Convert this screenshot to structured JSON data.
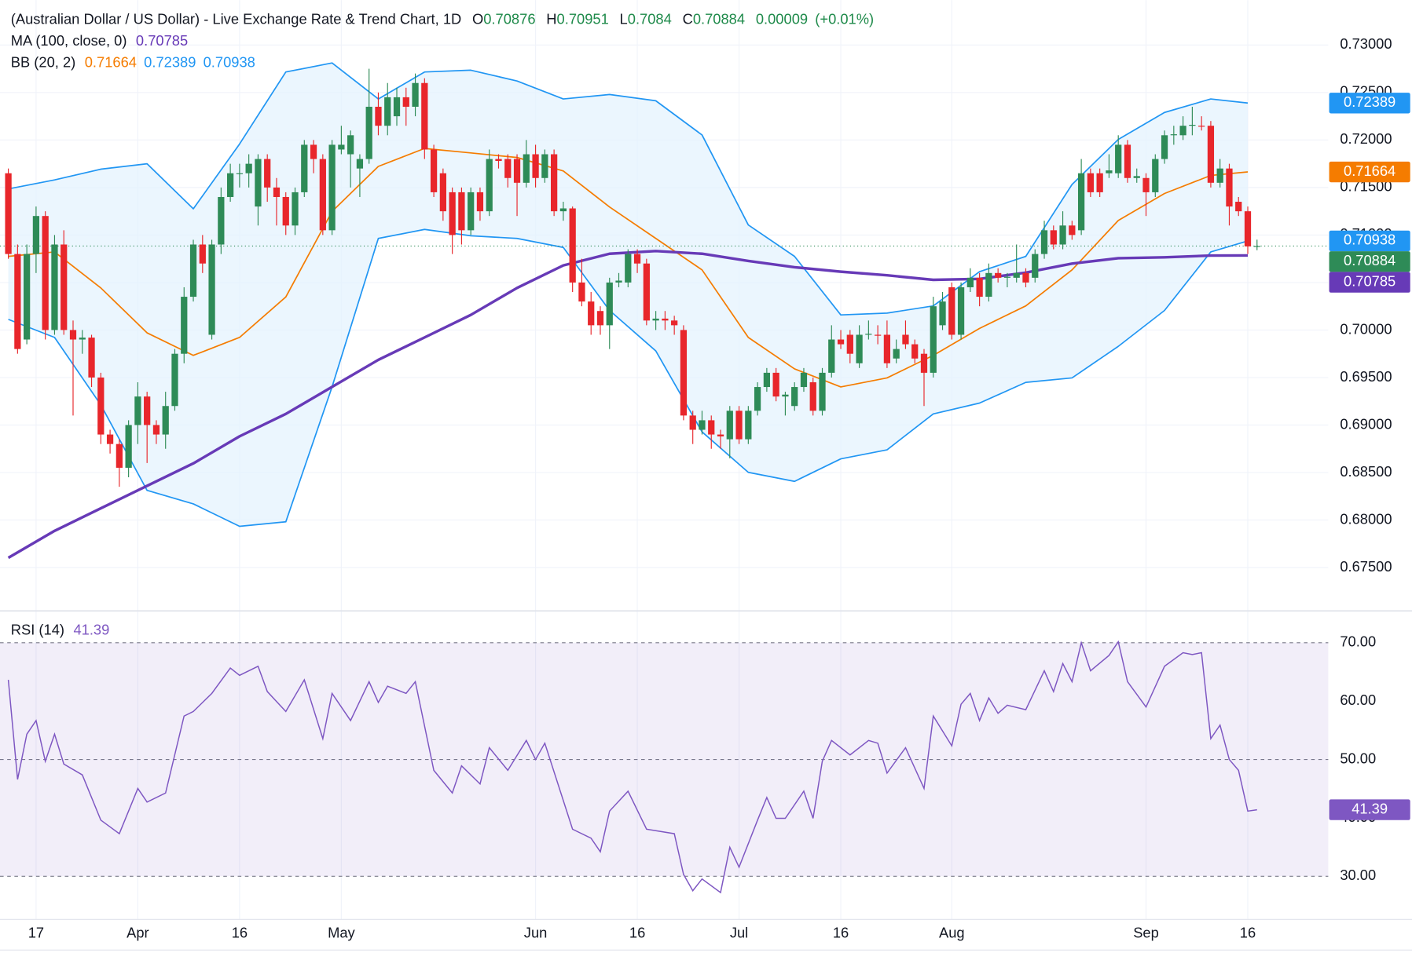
{
  "chart_data": {
    "type": "candlestick",
    "header": {
      "title": "(Australian Dollar / US Dollar) - Live Exchange Rate & Trend Chart, 1D",
      "open_label": "O",
      "open": 0.70876,
      "high_label": "H",
      "high": 0.70951,
      "low_label": "L",
      "low": 0.7084,
      "close_label": "C",
      "close": 0.70884,
      "change": 9e-05,
      "change_pct": "(+0.01%)"
    },
    "up_color": "#2e8b57",
    "down_color": "#e8262b",
    "xlim": [
      -0.9,
      142.7
    ],
    "xticks": [
      {
        "value": 3,
        "label": "17"
      },
      {
        "value": 14,
        "label": "Apr"
      },
      {
        "value": 25,
        "label": "16"
      },
      {
        "value": 36,
        "label": "May"
      },
      {
        "value": 57,
        "label": "Jun"
      },
      {
        "value": 68,
        "label": "16"
      },
      {
        "value": 79,
        "label": "Jul"
      },
      {
        "value": 90,
        "label": "16"
      },
      {
        "value": 102,
        "label": "Aug"
      },
      {
        "value": 123,
        "label": "Sep"
      },
      {
        "value": 134,
        "label": "16"
      }
    ],
    "ylim": [
      0.67053,
      0.73473
    ],
    "yticks": [
      {
        "value": 0.675,
        "label": "0.67500"
      },
      {
        "value": 0.68,
        "label": "0.68000"
      },
      {
        "value": 0.685,
        "label": "0.68500"
      },
      {
        "value": 0.69,
        "label": "0.69000"
      },
      {
        "value": 0.695,
        "label": "0.69500"
      },
      {
        "value": 0.7,
        "label": "0.70000"
      },
      {
        "value": 0.705,
        "label": "0.70500"
      },
      {
        "value": 0.71,
        "label": "0.71000"
      },
      {
        "value": 0.715,
        "label": "0.71500"
      },
      {
        "value": 0.72,
        "label": "0.72000"
      },
      {
        "value": 0.725,
        "label": "0.72500"
      },
      {
        "value": 0.73,
        "label": "0.73000"
      }
    ],
    "grid": true,
    "candles": [
      [
        0.7165,
        0.717,
        0.7075,
        0.708
      ],
      [
        0.708,
        0.709,
        0.6975,
        0.698
      ],
      [
        0.699,
        0.709,
        0.6985,
        0.708
      ],
      [
        0.708,
        0.713,
        0.706,
        0.712
      ],
      [
        0.712,
        0.7125,
        0.699,
        0.7
      ],
      [
        0.7,
        0.71,
        0.6995,
        0.709
      ],
      [
        0.709,
        0.7105,
        0.6995,
        0.7
      ],
      [
        0.7,
        0.701,
        0.691,
        0.699
      ],
      [
        0.699,
        0.7,
        0.6975,
        0.6992
      ],
      [
        0.6992,
        0.6995,
        0.694,
        0.695
      ],
      [
        0.695,
        0.6955,
        0.688,
        0.689
      ],
      [
        0.689,
        0.6895,
        0.687,
        0.688
      ],
      [
        0.688,
        0.6885,
        0.6835,
        0.6855
      ],
      [
        0.6855,
        0.6905,
        0.6845,
        0.69
      ],
      [
        0.69,
        0.6945,
        0.688,
        0.693
      ],
      [
        0.693,
        0.6935,
        0.686,
        0.69
      ],
      [
        0.69,
        0.6905,
        0.688,
        0.689
      ],
      [
        0.689,
        0.6935,
        0.6875,
        0.692
      ],
      [
        0.692,
        0.698,
        0.6915,
        0.6975
      ],
      [
        0.6975,
        0.7045,
        0.6965,
        0.7035
      ],
      [
        0.7035,
        0.7095,
        0.703,
        0.709
      ],
      [
        0.709,
        0.71,
        0.706,
        0.707
      ],
      [
        0.6995,
        0.7095,
        0.699,
        0.709
      ],
      [
        0.709,
        0.715,
        0.708,
        0.714
      ],
      [
        0.714,
        0.7175,
        0.7135,
        0.7165
      ],
      [
        0.7165,
        0.7175,
        0.715,
        0.7165
      ],
      [
        0.7165,
        0.7185,
        0.715,
        0.7175
      ],
      [
        0.713,
        0.7185,
        0.711,
        0.718
      ],
      [
        0.718,
        0.7185,
        0.7135,
        0.715
      ],
      [
        0.715,
        0.716,
        0.711,
        0.714
      ],
      [
        0.714,
        0.7145,
        0.71,
        0.711
      ],
      [
        0.711,
        0.715,
        0.71,
        0.7145
      ],
      [
        0.7145,
        0.72,
        0.714,
        0.7195
      ],
      [
        0.7195,
        0.72,
        0.7165,
        0.718
      ],
      [
        0.718,
        0.7185,
        0.71,
        0.7105
      ],
      [
        0.7105,
        0.72,
        0.71,
        0.7195
      ],
      [
        0.719,
        0.7215,
        0.7185,
        0.7195
      ],
      [
        0.7185,
        0.721,
        0.715,
        0.7205
      ],
      [
        0.717,
        0.7185,
        0.714,
        0.718
      ],
      [
        0.718,
        0.7275,
        0.7175,
        0.7235
      ],
      [
        0.7235,
        0.725,
        0.7205,
        0.7215
      ],
      [
        0.7215,
        0.726,
        0.7205,
        0.7245
      ],
      [
        0.7225,
        0.7255,
        0.7215,
        0.7245
      ],
      [
        0.7245,
        0.7255,
        0.7215,
        0.7235
      ],
      [
        0.7235,
        0.727,
        0.7225,
        0.726
      ],
      [
        0.726,
        0.7265,
        0.718,
        0.719
      ],
      [
        0.719,
        0.7195,
        0.714,
        0.7145
      ],
      [
        0.7165,
        0.717,
        0.7115,
        0.7125
      ],
      [
        0.7145,
        0.715,
        0.708,
        0.71
      ],
      [
        0.7145,
        0.715,
        0.709,
        0.7105
      ],
      [
        0.7105,
        0.715,
        0.71,
        0.7145
      ],
      [
        0.7145,
        0.715,
        0.7115,
        0.7125
      ],
      [
        0.7125,
        0.719,
        0.712,
        0.718
      ],
      [
        0.718,
        0.7185,
        0.717,
        0.7178
      ],
      [
        0.718,
        0.7185,
        0.715,
        0.716
      ],
      [
        0.718,
        0.7185,
        0.712,
        0.7155
      ],
      [
        0.7155,
        0.72,
        0.715,
        0.7185
      ],
      [
        0.7185,
        0.7195,
        0.715,
        0.716
      ],
      [
        0.716,
        0.719,
        0.7155,
        0.7185
      ],
      [
        0.7185,
        0.719,
        0.712,
        0.7125
      ],
      [
        0.7125,
        0.7135,
        0.7115,
        0.7128
      ],
      [
        0.7128,
        0.713,
        0.704,
        0.705
      ],
      [
        0.705,
        0.7075,
        0.7025,
        0.703
      ],
      [
        0.703,
        0.704,
        0.6995,
        0.7005
      ],
      [
        0.702,
        0.7025,
        0.6995,
        0.7005
      ],
      [
        0.7005,
        0.7055,
        0.698,
        0.705
      ],
      [
        0.705,
        0.706,
        0.7045,
        0.7052
      ],
      [
        0.705,
        0.7085,
        0.7045,
        0.708
      ],
      [
        0.708,
        0.7085,
        0.706,
        0.707
      ],
      [
        0.707,
        0.7075,
        0.7005,
        0.701
      ],
      [
        0.701,
        0.702,
        0.7,
        0.7012
      ],
      [
        0.7012,
        0.702,
        0.7,
        0.701
      ],
      [
        0.701,
        0.7015,
        0.6995,
        0.7005
      ],
      [
        0.7,
        0.7005,
        0.6905,
        0.691
      ],
      [
        0.691,
        0.6915,
        0.688,
        0.6895
      ],
      [
        0.6895,
        0.6915,
        0.689,
        0.6905
      ],
      [
        0.6905,
        0.691,
        0.6875,
        0.689
      ],
      [
        0.689,
        0.6895,
        0.6875,
        0.6888
      ],
      [
        0.6885,
        0.692,
        0.6865,
        0.6915
      ],
      [
        0.6915,
        0.692,
        0.688,
        0.6885
      ],
      [
        0.6885,
        0.692,
        0.688,
        0.6915
      ],
      [
        0.6915,
        0.6945,
        0.691,
        0.694
      ],
      [
        0.694,
        0.696,
        0.6935,
        0.6955
      ],
      [
        0.6955,
        0.696,
        0.6925,
        0.693
      ],
      [
        0.693,
        0.6935,
        0.691,
        0.6932
      ],
      [
        0.692,
        0.6945,
        0.6915,
        0.694
      ],
      [
        0.694,
        0.696,
        0.6935,
        0.6955
      ],
      [
        0.6945,
        0.695,
        0.691,
        0.6915
      ],
      [
        0.6915,
        0.696,
        0.691,
        0.6955
      ],
      [
        0.6955,
        0.7005,
        0.695,
        0.699
      ],
      [
        0.699,
        0.7,
        0.698,
        0.6985
      ],
      [
        0.6995,
        0.7,
        0.6965,
        0.6975
      ],
      [
        0.6965,
        0.7005,
        0.696,
        0.6995
      ],
      [
        0.6995,
        0.701,
        0.699,
        0.6996
      ],
      [
        0.6995,
        0.7005,
        0.6985,
        0.6994
      ],
      [
        0.6995,
        0.701,
        0.696,
        0.6965
      ],
      [
        0.697,
        0.699,
        0.6965,
        0.698
      ],
      [
        0.6995,
        0.701,
        0.698,
        0.6985
      ],
      [
        0.6985,
        0.699,
        0.6965,
        0.697
      ],
      [
        0.6975,
        0.698,
        0.692,
        0.6955
      ],
      [
        0.6955,
        0.7035,
        0.695,
        0.7025
      ],
      [
        0.7005,
        0.704,
        0.7,
        0.703
      ],
      [
        0.7045,
        0.705,
        0.699,
        0.6995
      ],
      [
        0.6995,
        0.705,
        0.699,
        0.7045
      ],
      [
        0.7045,
        0.7065,
        0.704,
        0.7055
      ],
      [
        0.7055,
        0.706,
        0.7025,
        0.7035
      ],
      [
        0.7035,
        0.707,
        0.703,
        0.706
      ],
      [
        0.706,
        0.7065,
        0.705,
        0.7055
      ],
      [
        0.7055,
        0.706,
        0.7045,
        0.7056
      ],
      [
        0.7055,
        0.709,
        0.705,
        0.706
      ],
      [
        0.706,
        0.7065,
        0.7045,
        0.705
      ],
      [
        0.7055,
        0.7085,
        0.705,
        0.708
      ],
      [
        0.708,
        0.7115,
        0.7075,
        0.7105
      ],
      [
        0.7105,
        0.711,
        0.7085,
        0.709
      ],
      [
        0.709,
        0.7125,
        0.7085,
        0.711
      ],
      [
        0.711,
        0.7115,
        0.7095,
        0.71
      ],
      [
        0.7105,
        0.718,
        0.71,
        0.7165
      ],
      [
        0.7165,
        0.717,
        0.714,
        0.7145
      ],
      [
        0.7165,
        0.717,
        0.714,
        0.7145
      ],
      [
        0.7165,
        0.7185,
        0.716,
        0.7168
      ],
      [
        0.7165,
        0.7205,
        0.716,
        0.7195
      ],
      [
        0.7195,
        0.72,
        0.7155,
        0.716
      ],
      [
        0.716,
        0.717,
        0.7155,
        0.7162
      ],
      [
        0.716,
        0.7165,
        0.712,
        0.7145
      ],
      [
        0.7145,
        0.7185,
        0.714,
        0.718
      ],
      [
        0.718,
        0.721,
        0.7175,
        0.7205
      ],
      [
        0.7205,
        0.7215,
        0.7195,
        0.7206
      ],
      [
        0.7205,
        0.7225,
        0.72,
        0.7215
      ],
      [
        0.7215,
        0.7235,
        0.7205,
        0.7216
      ],
      [
        0.7215,
        0.7225,
        0.721,
        0.7214
      ],
      [
        0.7215,
        0.722,
        0.715,
        0.7155
      ],
      [
        0.7155,
        0.718,
        0.715,
        0.717
      ],
      [
        0.717,
        0.7175,
        0.711,
        0.713
      ],
      [
        0.7135,
        0.714,
        0.712,
        0.7125
      ],
      [
        0.7125,
        0.713,
        0.708,
        0.7088
      ],
      [
        0.70876,
        0.70951,
        0.7084,
        0.70884
      ]
    ],
    "line_x": [
      0,
      5,
      10,
      15,
      20,
      25,
      30,
      35,
      40,
      45,
      50,
      55,
      60,
      65,
      70,
      75,
      80,
      85,
      90,
      95,
      100,
      105,
      110,
      115,
      120,
      125,
      130,
      134
    ],
    "indicators": [
      {
        "name": "MA (100, close, 0)",
        "series": [
          {
            "color": "#673ab7",
            "width": 3,
            "values": [
              0.67602,
              0.67886,
              0.68123,
              0.6836,
              0.68596,
              0.68881,
              0.69117,
              0.69401,
              0.69686,
              0.69922,
              0.70159,
              0.70443,
              0.7068,
              0.70803,
              0.70831,
              0.70803,
              0.70727,
              0.70661,
              0.70614,
              0.70576,
              0.70528,
              0.70538,
              0.70604,
              0.70699,
              0.70756,
              0.70765,
              0.70784,
              0.70785
            ]
          }
        ]
      },
      {
        "name": "BB (20, 2)",
        "band_fill": "#e3f2fd",
        "series": [
          {
            "color": "#f57c00",
            "width": 1.5,
            "values": [
              0.70775,
              0.70822,
              0.70443,
              0.6997,
              0.69733,
              0.69922,
              0.70348,
              0.71248,
              0.71722,
              0.71911,
              0.71864,
              0.71816,
              0.71674,
              0.71295,
              0.70964,
              0.70633,
              0.69922,
              0.69591,
              0.69401,
              0.69496,
              0.69733,
              0.70017,
              0.70254,
              0.70633,
              0.71153,
              0.71437,
              0.71627,
              0.71664
            ]
          },
          {
            "color": "#2196f3",
            "width": 1.5,
            "values": [
              0.71485,
              0.7158,
              0.71693,
              0.7175,
              0.71276,
              0.71958,
              0.72716,
              0.72811,
              0.72432,
              0.72716,
              0.72735,
              0.72621,
              0.72432,
              0.72479,
              0.72413,
              0.72053,
              0.71106,
              0.70775,
              0.70159,
              0.70178,
              0.70254,
              0.70614,
              0.70775,
              0.71532,
              0.72006,
              0.7229,
              0.72432,
              0.72389
            ]
          },
          {
            "color": "#2196f3",
            "width": 1.5,
            "values": [
              0.70112,
              0.69922,
              0.69212,
              0.68312,
              0.6817,
              0.67934,
              0.67981,
              0.69401,
              0.70964,
              0.71059,
              0.70992,
              0.70964,
              0.70869,
              0.70206,
              0.6978,
              0.68928,
              0.68502,
              0.68407,
              0.68644,
              0.68739,
              0.69117,
              0.69231,
              0.69449,
              0.69496,
              0.69828,
              0.70206,
              0.70822,
              0.70938
            ]
          }
        ]
      }
    ],
    "rsi": {
      "name": "RSI (14)",
      "color": "#7e57c2",
      "ylim": [
        22.6,
        75.3
      ],
      "yticks": [
        {
          "value": 30,
          "label": "30.00"
        },
        {
          "value": 40,
          "label": "40.00"
        },
        {
          "value": 50,
          "label": "50.00"
        },
        {
          "value": 60,
          "label": "60.00"
        },
        {
          "value": 70,
          "label": "70.00"
        }
      ],
      "levels": {
        "upper": 70,
        "middle": 50,
        "lower": 30
      },
      "x": [
        0,
        1,
        2,
        3,
        4,
        5,
        6,
        8,
        10,
        12,
        14,
        15,
        17,
        19,
        20,
        22,
        24,
        25,
        27,
        28,
        30,
        32,
        34,
        35,
        37,
        39,
        40,
        41,
        43,
        44,
        46,
        48,
        49,
        51,
        52,
        54,
        56,
        57,
        58,
        61,
        63,
        64,
        65,
        67,
        69,
        72,
        73,
        74,
        75,
        77,
        78,
        79,
        81,
        82,
        83,
        84,
        86,
        87,
        88,
        89,
        91,
        93,
        94,
        95,
        97,
        99,
        100,
        102,
        103,
        104,
        105,
        106,
        107,
        108,
        110,
        112,
        113,
        114,
        115,
        116,
        117,
        119,
        120,
        121,
        123,
        125,
        127,
        128,
        129,
        130,
        131,
        132,
        133,
        134,
        135
      ],
      "values": [
        63.64,
        46.59,
        54.34,
        56.67,
        49.69,
        54.34,
        49.22,
        47.36,
        39.61,
        37.29,
        45.04,
        42.71,
        44.26,
        57.44,
        58.22,
        61.32,
        65.66,
        64.42,
        65.97,
        61.63,
        58.22,
        63.64,
        53.57,
        61.32,
        56.67,
        63.33,
        59.77,
        62.56,
        61.32,
        63.33,
        48.14,
        44.26,
        48.91,
        45.81,
        52.02,
        48.14,
        53.26,
        50.0,
        52.79,
        38.06,
        36.51,
        34.19,
        41.16,
        44.57,
        38.06,
        37.29,
        30.31,
        27.52,
        29.53,
        27.21,
        34.96,
        31.55,
        39.61,
        43.49,
        39.92,
        39.92,
        44.57,
        39.92,
        49.69,
        53.26,
        50.78,
        53.26,
        52.79,
        47.67,
        52.02,
        45.04,
        57.44,
        52.33,
        59.46,
        61.32,
        56.67,
        60.54,
        57.91,
        59.3,
        58.53,
        65.19,
        61.63,
        66.43,
        63.33,
        70.0,
        65.19,
        67.83,
        70.16,
        63.33,
        58.99,
        65.97,
        68.29,
        67.98,
        68.29,
        53.57,
        55.89,
        50.0,
        48.14,
        41.16,
        41.39
      ]
    }
  }
}
